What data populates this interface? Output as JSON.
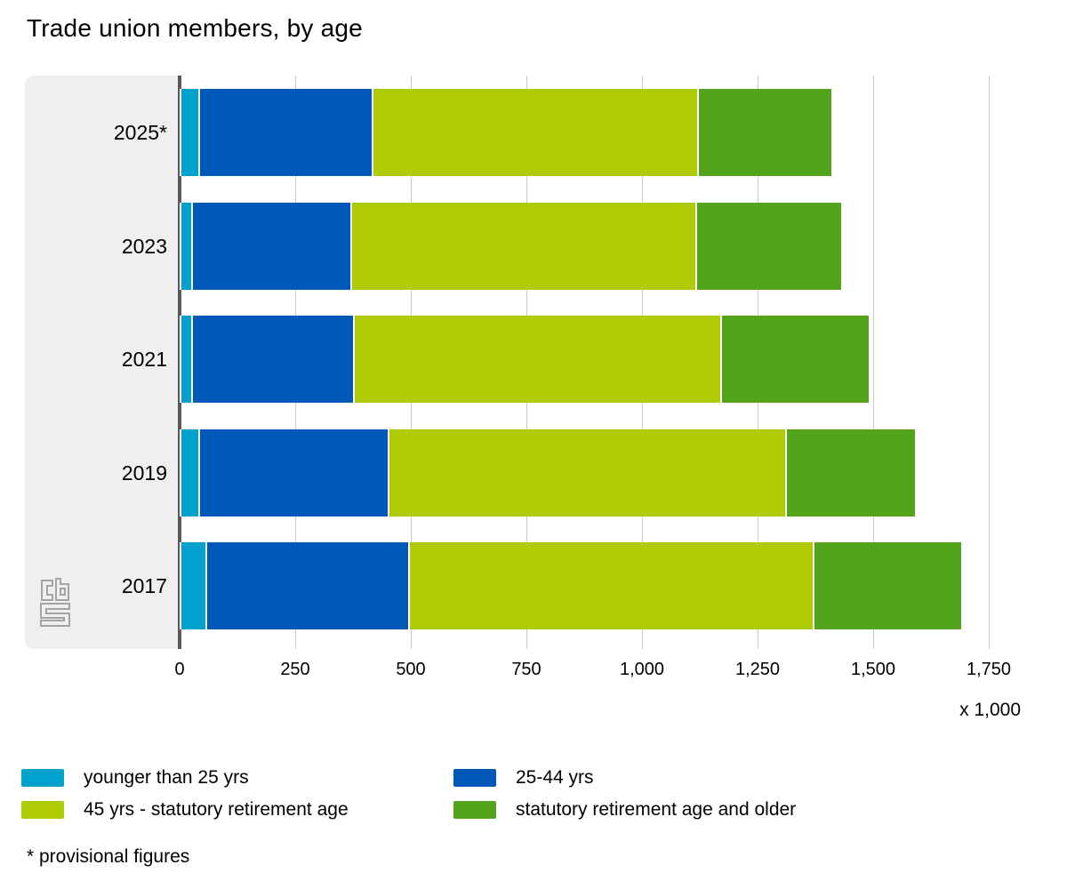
{
  "title": "Trade union members, by age",
  "footnote": "* provisional figures",
  "axis": {
    "unit_label": "x 1,000",
    "ticks": [
      "0",
      "250",
      "500",
      "750",
      "1,000",
      "1,250",
      "1,500",
      "1,750"
    ],
    "tick_values": [
      0,
      250,
      500,
      750,
      1000,
      1250,
      1500,
      1750
    ],
    "max": 1750
  },
  "colors": {
    "younger_than_25": "#00a1cd",
    "age_25_44": "#0058b8",
    "age_45_retirement": "#afcb05",
    "retirement_and_older": "#53a31d",
    "axis_line": "#58595b",
    "gridline": "#c9c9c9",
    "category_band": "#efefef",
    "logo_gray": "#a3a3a3"
  },
  "chart_data": {
    "type": "bar",
    "orientation": "horizontal",
    "stacked": true,
    "title": "Trade union members, by age",
    "categories": [
      "2025*",
      "2023",
      "2021",
      "2019",
      "2017"
    ],
    "series": [
      {
        "name": "younger than 25 yrs",
        "color": "#00a1cd",
        "values": [
          40,
          25,
          25,
          40,
          55
        ]
      },
      {
        "name": "25-44 yrs",
        "color": "#0058b8",
        "values": [
          375,
          345,
          350,
          410,
          440
        ]
      },
      {
        "name": "45 yrs - statutory retirement age",
        "color": "#afcb05",
        "values": [
          705,
          745,
          795,
          860,
          875
        ]
      },
      {
        "name": "statutory retirement age and older",
        "color": "#53a31d",
        "values": [
          290,
          315,
          320,
          280,
          320
        ]
      }
    ],
    "totals": [
      1410,
      1430,
      1490,
      1590,
      1690
    ],
    "value_unit": "x 1,000",
    "xlim": [
      0,
      1750
    ],
    "grid": true,
    "legend_position": "bottom",
    "provisional_note": "* provisional figures"
  },
  "logo": {
    "name": "cbs"
  }
}
